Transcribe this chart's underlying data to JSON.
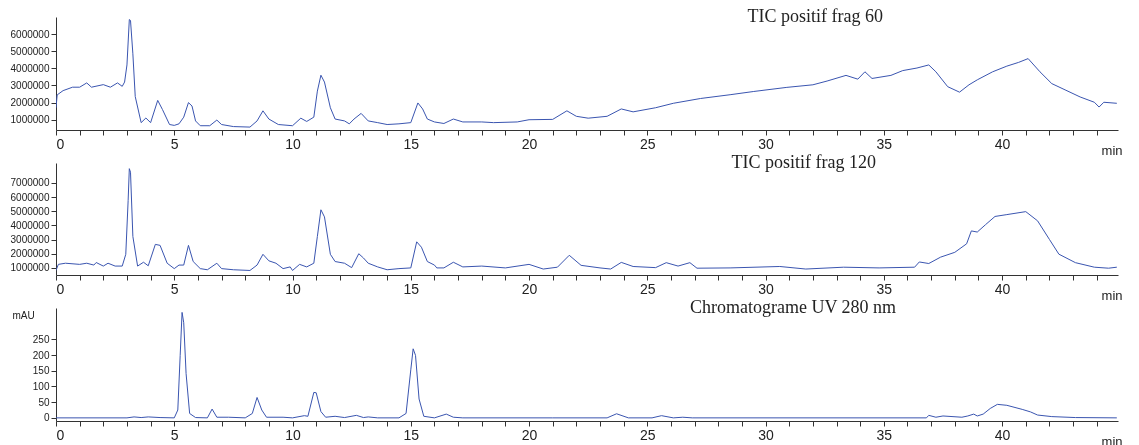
{
  "chart_data": [
    {
      "type": "line",
      "xlabel": "min",
      "xlim": [
        0,
        44.9
      ],
      "ylim": [
        400000,
        7000000
      ],
      "yticks": [
        1000000,
        2000000,
        3000000,
        4000000,
        5000000,
        6000000
      ],
      "xticks": [
        0,
        {
          "value": 1,
          "label": null
        },
        {
          "value": 2,
          "label": null
        },
        {
          "value": 3,
          "label": null
        },
        {
          "value": 4,
          "label": null
        },
        5,
        {
          "value": 6,
          "label": null
        },
        {
          "value": 7,
          "label": null
        },
        {
          "value": 8,
          "label": null
        },
        {
          "value": 9,
          "label": null
        },
        10,
        {
          "value": 11,
          "label": null
        },
        {
          "value": 12,
          "label": null
        },
        {
          "value": 13,
          "label": null
        },
        {
          "value": 14,
          "label": null
        },
        15,
        {
          "value": 16,
          "label": null
        },
        {
          "value": 17,
          "label": null
        },
        {
          "value": 18,
          "label": null
        },
        {
          "value": 19,
          "label": null
        },
        20,
        {
          "value": 21,
          "label": null
        },
        {
          "value": 22,
          "label": null
        },
        {
          "value": 23,
          "label": null
        },
        {
          "value": 24,
          "label": null
        },
        25,
        {
          "value": 26,
          "label": null
        },
        {
          "value": 27,
          "label": null
        },
        {
          "value": 28,
          "label": null
        },
        {
          "value": 29,
          "label": null
        },
        30,
        {
          "value": 31,
          "label": null
        },
        {
          "value": 32,
          "label": null
        },
        {
          "value": 33,
          "label": null
        },
        {
          "value": 34,
          "label": null
        },
        35,
        {
          "value": 36,
          "label": null
        },
        {
          "value": 37,
          "label": null
        },
        {
          "value": 38,
          "label": null
        },
        {
          "value": 39,
          "label": null
        },
        40,
        {
          "value": 41,
          "label": null
        },
        {
          "value": 42,
          "label": null
        },
        {
          "value": 43,
          "label": null
        },
        {
          "value": 44,
          "label": null
        }
      ],
      "series": [
        {
          "name": "TIC positif frag 60",
          "color": "#3a55b0",
          "x": [
            0,
            0.05,
            0.3,
            0.7,
            1.0,
            1.3,
            1.5,
            2.0,
            2.3,
            2.6,
            2.8,
            2.9,
            3.0,
            3.1,
            3.15,
            3.25,
            3.35,
            3.6,
            3.8,
            4.0,
            4.3,
            4.5,
            4.8,
            5.0,
            5.2,
            5.4,
            5.6,
            5.75,
            5.9,
            6.1,
            6.5,
            6.8,
            7.0,
            7.5,
            8.2,
            8.5,
            8.75,
            9.0,
            9.4,
            10.0,
            10.35,
            10.6,
            10.9,
            11.05,
            11.2,
            11.35,
            11.6,
            11.8,
            12.2,
            12.4,
            12.6,
            12.9,
            13.2,
            13.6,
            14.0,
            14.5,
            15.0,
            15.3,
            15.5,
            15.7,
            16.0,
            16.4,
            16.8,
            17.2,
            18.0,
            18.5,
            19.5,
            20.0,
            21.0,
            21.6,
            22.0,
            22.5,
            23.3,
            23.9,
            24.4,
            25.35,
            26.1,
            27.25,
            28.5,
            29.5,
            30.9,
            32.0,
            32.6,
            33.4,
            33.9,
            34.2,
            34.5,
            35.3,
            35.8,
            36.4,
            36.9,
            37.2,
            37.7,
            38.2,
            38.6,
            38.95,
            39.6,
            40.2,
            40.7,
            41.1,
            41.6,
            42.1,
            42.7,
            43.3,
            43.9,
            44.1,
            44.3,
            44.85
          ],
          "values": [
            1700000,
            2450000,
            2700000,
            2900000,
            2900000,
            3150000,
            2900000,
            3050000,
            2900000,
            3150000,
            2950000,
            3200000,
            4200000,
            6850000,
            6800000,
            4850000,
            2350000,
            830000,
            1100000,
            830000,
            2130000,
            1600000,
            720000,
            670000,
            760000,
            1150000,
            2000000,
            1800000,
            930000,
            650000,
            650000,
            980000,
            720000,
            600000,
            570000,
            930000,
            1520000,
            1040000,
            720000,
            650000,
            1090000,
            900000,
            1150000,
            2670000,
            3600000,
            3200000,
            1700000,
            1040000,
            930000,
            760000,
            1040000,
            1370000,
            930000,
            830000,
            720000,
            760000,
            830000,
            1980000,
            1630000,
            1040000,
            870000,
            780000,
            1040000,
            870000,
            870000,
            830000,
            870000,
            1000000,
            1020000,
            1520000,
            1200000,
            1090000,
            1200000,
            1630000,
            1460000,
            1700000,
            1960000,
            2240000,
            2460000,
            2650000,
            2890000,
            3040000,
            3260000,
            3590000,
            3370000,
            3800000,
            3410000,
            3590000,
            3870000,
            4020000,
            4200000,
            3800000,
            2930000,
            2610000,
            3040000,
            3330000,
            3800000,
            4130000,
            4350000,
            4570000,
            3800000,
            3110000,
            2720000,
            2330000,
            2020000,
            1740000,
            2020000,
            1960000
          ]
        }
      ]
    },
    {
      "type": "line",
      "xlabel": "min",
      "xlim": [
        0,
        44.9
      ],
      "ylim": [
        500000,
        8400000
      ],
      "yticks": [
        1000000,
        2000000,
        3000000,
        4000000,
        5000000,
        6000000,
        7000000
      ],
      "xticks": [
        0,
        {
          "value": 1,
          "label": null
        },
        {
          "value": 2,
          "label": null
        },
        {
          "value": 3,
          "label": null
        },
        {
          "value": 4,
          "label": null
        },
        5,
        {
          "value": 6,
          "label": null
        },
        {
          "value": 7,
          "label": null
        },
        {
          "value": 8,
          "label": null
        },
        {
          "value": 9,
          "label": null
        },
        10,
        {
          "value": 11,
          "label": null
        },
        {
          "value": 12,
          "label": null
        },
        {
          "value": 13,
          "label": null
        },
        {
          "value": 14,
          "label": null
        },
        15,
        {
          "value": 16,
          "label": null
        },
        {
          "value": 17,
          "label": null
        },
        {
          "value": 18,
          "label": null
        },
        {
          "value": 19,
          "label": null
        },
        20,
        {
          "value": 21,
          "label": null
        },
        {
          "value": 22,
          "label": null
        },
        {
          "value": 23,
          "label": null
        },
        {
          "value": 24,
          "label": null
        },
        25,
        {
          "value": 26,
          "label": null
        },
        {
          "value": 27,
          "label": null
        },
        {
          "value": 28,
          "label": null
        },
        {
          "value": 29,
          "label": null
        },
        30,
        {
          "value": 31,
          "label": null
        },
        {
          "value": 32,
          "label": null
        },
        {
          "value": 33,
          "label": null
        },
        {
          "value": 34,
          "label": null
        },
        35,
        {
          "value": 36,
          "label": null
        },
        {
          "value": 37,
          "label": null
        },
        {
          "value": 38,
          "label": null
        },
        {
          "value": 39,
          "label": null
        },
        40,
        {
          "value": 41,
          "label": null
        },
        {
          "value": 42,
          "label": null
        },
        {
          "value": 43,
          "label": null
        },
        {
          "value": 44,
          "label": null
        }
      ],
      "series": [
        {
          "name": "TIC positif frag 120",
          "color": "#3a55b0",
          "x": [
            0,
            0.1,
            0.4,
            1.0,
            1.3,
            1.6,
            1.7,
            2.0,
            2.2,
            2.5,
            2.8,
            2.95,
            3.05,
            3.1,
            3.15,
            3.25,
            3.45,
            3.7,
            3.9,
            4.2,
            4.4,
            4.7,
            5.0,
            5.2,
            5.4,
            5.6,
            5.8,
            6.1,
            6.4,
            6.8,
            7.0,
            7.5,
            8.2,
            8.5,
            8.75,
            9.0,
            9.3,
            9.6,
            9.9,
            10.0,
            10.3,
            10.6,
            10.9,
            11.05,
            11.2,
            11.35,
            11.6,
            11.8,
            12.2,
            12.5,
            12.8,
            13.0,
            13.2,
            13.6,
            14.0,
            14.5,
            15.0,
            15.25,
            15.45,
            15.7,
            16.0,
            16.1,
            16.4,
            16.8,
            17.2,
            18.0,
            19.0,
            20.0,
            20.6,
            21.2,
            21.7,
            22.2,
            23.0,
            23.45,
            23.9,
            24.4,
            25.35,
            25.8,
            26.3,
            26.8,
            27.1,
            28.5,
            30.6,
            31.7,
            33.3,
            34.8,
            36.3,
            36.5,
            36.9,
            37.4,
            38.0,
            38.5,
            38.7,
            38.95,
            39.3,
            39.7,
            40.2,
            41.0,
            41.5,
            42.0,
            42.4,
            43.1,
            43.9,
            44.5,
            44.85
          ],
          "values": [
            820000,
            1250000,
            1330000,
            1250000,
            1330000,
            1200000,
            1380000,
            1130000,
            1330000,
            1130000,
            1130000,
            1960000,
            5740000,
            8000000,
            7750000,
            3220000,
            1130000,
            1400000,
            1150000,
            2660000,
            2590000,
            1330000,
            950000,
            1200000,
            1200000,
            2590000,
            1450000,
            950000,
            870000,
            1330000,
            950000,
            870000,
            820000,
            1200000,
            1960000,
            1500000,
            1330000,
            950000,
            1070000,
            820000,
            1250000,
            1070000,
            1330000,
            3220000,
            5100000,
            4600000,
            1960000,
            1450000,
            1330000,
            1020000,
            2000000,
            1700000,
            1330000,
            1070000,
            870000,
            950000,
            1000000,
            2840000,
            2460000,
            1450000,
            1200000,
            1000000,
            1000000,
            1400000,
            1070000,
            1130000,
            1000000,
            1250000,
            920000,
            1050000,
            1890000,
            1180000,
            1000000,
            920000,
            1390000,
            1100000,
            1020000,
            1370000,
            1130000,
            1370000,
            980000,
            1000000,
            1100000,
            920000,
            1050000,
            1000000,
            1050000,
            1420000,
            1310000,
            1760000,
            2100000,
            2700000,
            3610000,
            3530000,
            4050000,
            4630000,
            4760000,
            4970000,
            4320000,
            3010000,
            1970000,
            1370000,
            1050000,
            980000,
            1050000
          ]
        }
      ]
    },
    {
      "type": "line",
      "xlabel": "min",
      "ylabel": "mAU",
      "xlim": [
        0,
        44.9
      ],
      "ylim": [
        -10,
        350
      ],
      "yticks": [
        0,
        50,
        100,
        150,
        200,
        250
      ],
      "xticks": [
        0,
        {
          "value": 1,
          "label": null
        },
        {
          "value": 2,
          "label": null
        },
        {
          "value": 3,
          "label": null
        },
        {
          "value": 4,
          "label": null
        },
        5,
        {
          "value": 6,
          "label": null
        },
        {
          "value": 7,
          "label": null
        },
        {
          "value": 8,
          "label": null
        },
        {
          "value": 9,
          "label": null
        },
        10,
        {
          "value": 11,
          "label": null
        },
        {
          "value": 12,
          "label": null
        },
        {
          "value": 13,
          "label": null
        },
        {
          "value": 14,
          "label": null
        },
        15,
        {
          "value": 16,
          "label": null
        },
        {
          "value": 17,
          "label": null
        },
        {
          "value": 18,
          "label": null
        },
        {
          "value": 19,
          "label": null
        },
        20,
        {
          "value": 21,
          "label": null
        },
        {
          "value": 22,
          "label": null
        },
        {
          "value": 23,
          "label": null
        },
        {
          "value": 24,
          "label": null
        },
        25,
        {
          "value": 26,
          "label": null
        },
        {
          "value": 27,
          "label": null
        },
        {
          "value": 28,
          "label": null
        },
        {
          "value": 29,
          "label": null
        },
        30,
        {
          "value": 31,
          "label": null
        },
        {
          "value": 32,
          "label": null
        },
        {
          "value": 33,
          "label": null
        },
        {
          "value": 34,
          "label": null
        },
        35,
        {
          "value": 36,
          "label": null
        },
        {
          "value": 37,
          "label": null
        },
        {
          "value": 38,
          "label": null
        },
        {
          "value": 39,
          "label": null
        },
        40,
        {
          "value": 41,
          "label": null
        },
        {
          "value": 42,
          "label": null
        },
        {
          "value": 43,
          "label": null
        },
        {
          "value": 44,
          "label": null
        }
      ],
      "series": [
        {
          "name": "Chromatograme UV 280 nm",
          "color": "#3a55b0",
          "x": [
            0,
            3.0,
            3.3,
            3.6,
            3.9,
            4.4,
            5.0,
            5.15,
            5.25,
            5.33,
            5.4,
            5.5,
            5.65,
            5.9,
            6.4,
            6.6,
            6.8,
            7.3,
            8.0,
            8.3,
            8.5,
            8.7,
            8.9,
            9.6,
            10.0,
            10.5,
            10.65,
            10.9,
            11.0,
            11.2,
            11.4,
            11.8,
            12.2,
            12.7,
            13.0,
            13.2,
            13.6,
            14.5,
            14.8,
            15.0,
            15.1,
            15.2,
            15.35,
            15.55,
            16.0,
            16.5,
            16.8,
            17.2,
            21.0,
            23.3,
            23.7,
            24.2,
            25.2,
            25.6,
            26.1,
            26.5,
            26.9,
            36.8,
            36.9,
            37.2,
            37.5,
            38.3,
            38.55,
            38.8,
            38.95,
            39.2,
            39.5,
            39.8,
            40.2,
            40.85,
            41.2,
            41.5,
            42.1,
            43.1,
            44.85
          ],
          "values": [
            0,
            0,
            3,
            1,
            3,
            1,
            0,
            25,
            199,
            336,
            303,
            141,
            14,
            1,
            0,
            28,
            2,
            2,
            0,
            14,
            65,
            25,
            2,
            2,
            0,
            7,
            5,
            81,
            80,
            20,
            2,
            5,
            1,
            8,
            1,
            3,
            0,
            0,
            14,
            153,
            220,
            199,
            60,
            5,
            0,
            12,
            2,
            0,
            0,
            0,
            13,
            0,
            0,
            7,
            0,
            2,
            0,
            0,
            8,
            2,
            6,
            2,
            6,
            12,
            6,
            12,
            30,
            43,
            40,
            27,
            19,
            9,
            4,
            1,
            0
          ]
        }
      ]
    }
  ]
}
